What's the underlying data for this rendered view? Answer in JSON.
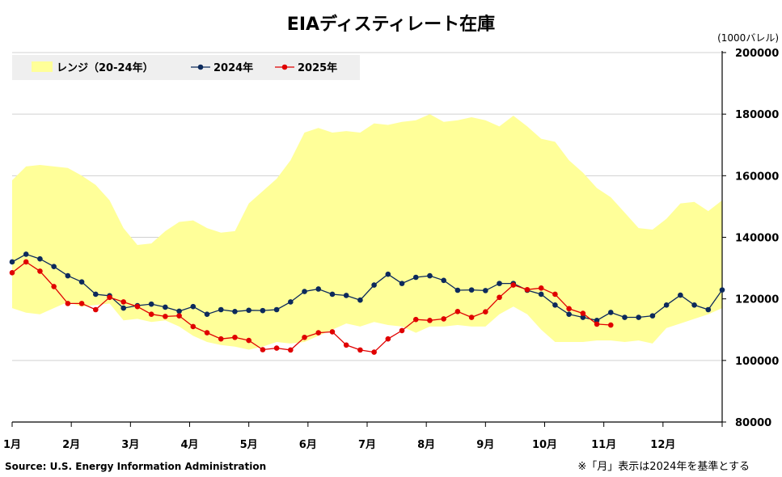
{
  "chart_data": {
    "type": "line",
    "title": "EIAディスティレート在庫",
    "unit_label": "(1000バレル)",
    "source": "Source: U.S. Energy Information Administration",
    "note": "※「月」表示は2024年を基準とする",
    "ylim": [
      80000,
      200000
    ],
    "yticks": [
      80000,
      100000,
      120000,
      140000,
      160000,
      180000,
      200000
    ],
    "ytick_labels": [
      "80000",
      "100000",
      "120000",
      "140000",
      "160000",
      "180000",
      "200000"
    ],
    "month_labels": [
      "1月",
      "2月",
      "3月",
      "4月",
      "5月",
      "6月",
      "7月",
      "8月",
      "9月",
      "10月",
      "11月",
      "12月"
    ],
    "grid": true,
    "legend_position": "top-left",
    "range": {
      "name": "レンジ（20-24年）",
      "color": "#ffff99",
      "upper": [
        158500,
        163000,
        163500,
        163000,
        162500,
        160000,
        157000,
        152000,
        143000,
        137500,
        138000,
        142000,
        145000,
        145500,
        143000,
        141500,
        142000,
        151000,
        155000,
        159000,
        165000,
        174000,
        175500,
        174000,
        174500,
        174000,
        177000,
        176500,
        177500,
        178000,
        180000,
        177500,
        178000,
        179000,
        178000,
        176000,
        179500,
        176000,
        172000,
        171000,
        165000,
        161000,
        156000,
        153000,
        148000,
        143000,
        142500,
        146000,
        151000,
        151500,
        148500,
        152000
      ],
      "lower": [
        117000,
        115500,
        115000,
        117000,
        119000,
        117500,
        118000,
        118500,
        113000,
        113500,
        112500,
        113000,
        111000,
        108000,
        106000,
        105000,
        104500,
        103500,
        104500,
        106000,
        105500,
        106000,
        108000,
        110000,
        112000,
        111000,
        112500,
        111500,
        111000,
        109000,
        111000,
        111000,
        111500,
        111000,
        111000,
        115000,
        117500,
        115000,
        110000,
        106000,
        106000,
        106000,
        106500,
        106500,
        106000,
        106500,
        105500,
        110500,
        112000,
        113500,
        115000,
        117000
      ]
    },
    "series": [
      {
        "name": "2024年",
        "color": "#0c2a5c",
        "values": [
          132000,
          134500,
          133000,
          130500,
          127500,
          125500,
          121500,
          121000,
          117000,
          117800,
          118300,
          117300,
          116000,
          117500,
          115000,
          116500,
          115900,
          116300,
          116200,
          116500,
          119000,
          122400,
          123200,
          121500,
          121100,
          119600,
          124500,
          128000,
          125000,
          127000,
          127500,
          126000,
          122800,
          122900,
          122700,
          125000,
          125000,
          122800,
          121500,
          118000,
          115000,
          114000,
          113000,
          115600,
          114000,
          114000,
          114500,
          118000,
          121200,
          118000,
          116500,
          122900
        ]
      },
      {
        "name": "2025年",
        "color": "#e00000",
        "values": [
          128500,
          132000,
          129000,
          124000,
          118500,
          118500,
          116500,
          120500,
          119000,
          117500,
          115000,
          114300,
          114500,
          111000,
          109000,
          107000,
          107500,
          106500,
          103500,
          104000,
          103400,
          107500,
          109000,
          109300,
          105000,
          103400,
          102700,
          107000,
          109700,
          113300,
          113000,
          113500,
          115900,
          114000,
          115800,
          120500,
          124500,
          123000,
          123500,
          121500,
          116800,
          115300,
          111800,
          111500
        ]
      }
    ]
  }
}
